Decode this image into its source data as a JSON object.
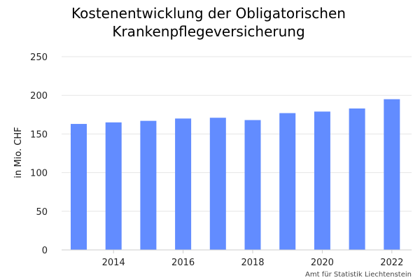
{
  "chart_data": {
    "type": "bar",
    "title_lines": [
      "Kostenentwicklung der Obligatorischen",
      "Krankenpflegeversicherung"
    ],
    "xlabel": "",
    "ylabel": "in Mio. CHF",
    "x": [
      2013,
      2014,
      2015,
      2016,
      2017,
      2018,
      2019,
      2020,
      2021,
      2022
    ],
    "values": [
      163,
      165,
      167,
      170,
      171,
      168,
      177,
      179,
      183,
      195
    ],
    "ylim": [
      0,
      250
    ],
    "yticks": [
      0,
      50,
      100,
      150,
      200,
      250
    ],
    "xticks": [
      2014,
      2016,
      2018,
      2020,
      2022
    ],
    "grid": true,
    "bar_color": "#628cff",
    "credit": "Amt für Statistik Liechtenstein"
  }
}
